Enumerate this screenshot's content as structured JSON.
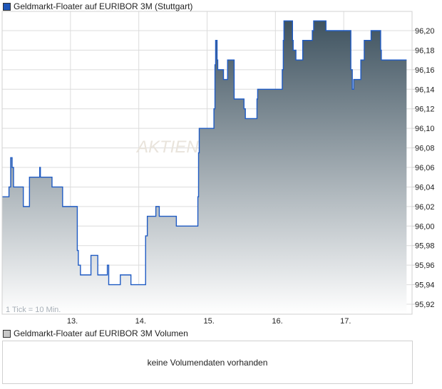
{
  "legend": {
    "label": "Geldmarkt-Floater auf EURIBOR 3M (Stuttgart)",
    "color": "#1f56b8"
  },
  "volume": {
    "legend_label": "Geldmarkt-Floater auf EURIBOR 3M Volumen",
    "legend_color": "#c8c8c8",
    "empty_message": "keine Volumendaten vorhanden"
  },
  "watermark": "AKTIEN",
  "tick_note": "1 Tick = 10 Min.",
  "chart_data": {
    "type": "area",
    "step": true,
    "line_color": "#1f5bc4",
    "fill_top_color": "#3f5360",
    "fill_bottom_color": "#ffffff",
    "grid": true,
    "xlim": [
      12.0,
      18.0
    ],
    "ylim": [
      95.91,
      96.226
    ],
    "x_ticks": [
      13,
      14,
      15,
      16,
      17
    ],
    "x_tick_labels": [
      "13.",
      "14.",
      "15.",
      "16.",
      "17."
    ],
    "y_ticks": [
      95.92,
      95.94,
      95.96,
      95.98,
      96.0,
      96.02,
      96.04,
      96.06,
      96.08,
      96.1,
      96.12,
      96.14,
      96.16,
      96.18,
      96.2
    ],
    "y_tick_labels": [
      "95,92",
      "95,94",
      "95,96",
      "95,98",
      "96,00",
      "96,02",
      "96,04",
      "96,06",
      "96,08",
      "96,10",
      "96,12",
      "96,14",
      "96,16",
      "96,18",
      "96,20"
    ],
    "x_end": 17.92,
    "points": [
      [
        12.0,
        96.03
      ],
      [
        12.1,
        96.04
      ],
      [
        12.125,
        96.07
      ],
      [
        12.146,
        96.06
      ],
      [
        12.167,
        96.04
      ],
      [
        12.31,
        96.02
      ],
      [
        12.4,
        96.05
      ],
      [
        12.55,
        96.06
      ],
      [
        12.56,
        96.05
      ],
      [
        12.73,
        96.04
      ],
      [
        12.885,
        96.02
      ],
      [
        13.1,
        95.975
      ],
      [
        13.115,
        95.96
      ],
      [
        13.146,
        95.95
      ],
      [
        13.3,
        95.97
      ],
      [
        13.4,
        95.95
      ],
      [
        13.54,
        95.96
      ],
      [
        13.56,
        95.94
      ],
      [
        13.73,
        95.95
      ],
      [
        13.885,
        95.94
      ],
      [
        14.1,
        95.99
      ],
      [
        14.125,
        96.01
      ],
      [
        14.25,
        96.02
      ],
      [
        14.3,
        96.01
      ],
      [
        14.55,
        96.0
      ],
      [
        14.865,
        96.03
      ],
      [
        14.875,
        96.075
      ],
      [
        14.885,
        96.1
      ],
      [
        15.1,
        96.12
      ],
      [
        15.115,
        96.165
      ],
      [
        15.125,
        96.19
      ],
      [
        15.146,
        96.17
      ],
      [
        15.156,
        96.16
      ],
      [
        15.24,
        96.15
      ],
      [
        15.3,
        96.17
      ],
      [
        15.396,
        96.13
      ],
      [
        15.54,
        96.12
      ],
      [
        15.56,
        96.11
      ],
      [
        15.73,
        96.13
      ],
      [
        15.74,
        96.14
      ],
      [
        16.1,
        96.16
      ],
      [
        16.115,
        96.19
      ],
      [
        16.125,
        96.21
      ],
      [
        16.25,
        96.19
      ],
      [
        16.26,
        96.18
      ],
      [
        16.3,
        96.17
      ],
      [
        16.4,
        96.19
      ],
      [
        16.54,
        96.2
      ],
      [
        16.56,
        96.21
      ],
      [
        16.74,
        96.2
      ],
      [
        17.104,
        96.16
      ],
      [
        17.125,
        96.14
      ],
      [
        17.146,
        96.15
      ],
      [
        17.25,
        96.17
      ],
      [
        17.3,
        96.19
      ],
      [
        17.4,
        96.2
      ],
      [
        17.54,
        96.18
      ],
      [
        17.55,
        96.17
      ]
    ]
  }
}
